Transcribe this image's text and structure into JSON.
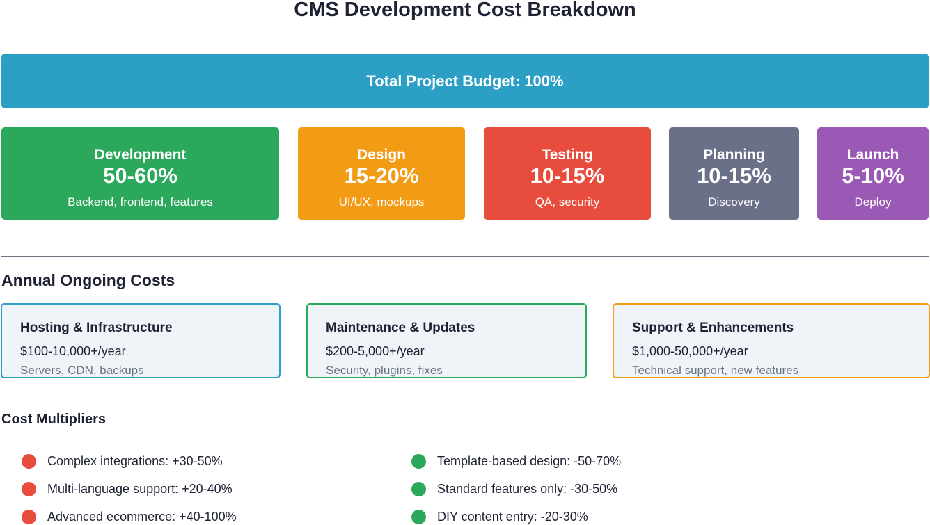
{
  "title": "CMS Development Cost Breakdown",
  "total": "Total Project Budget: 100%",
  "phases": [
    {
      "name": "Development",
      "value": "50-60%",
      "desc": "Backend, frontend, features",
      "color": "#2ba85c"
    },
    {
      "name": "Design",
      "value": "15-20%",
      "desc": "UI/UX, mockups",
      "color": "#f29c16"
    },
    {
      "name": "Testing",
      "value": "10-15%",
      "desc": "QA, security",
      "color": "#e84c3d"
    },
    {
      "name": "Planning",
      "value": "10-15%",
      "desc": "Discovery",
      "color": "#6b7089"
    },
    {
      "name": "Launch",
      "value": "5-10%",
      "desc": "Deploy",
      "color": "#9b59b6"
    }
  ],
  "ongoing": {
    "heading": "Annual Ongoing Costs",
    "items": [
      {
        "title": "Hosting & Infrastructure",
        "price": "$100-10,000+/year",
        "desc": "Servers, CDN, backups",
        "color": "#2b9fc4"
      },
      {
        "title": "Maintenance & Updates",
        "price": "$200-5,000+/year",
        "desc": "Security, plugins, fixes",
        "color": "#2ba85c"
      },
      {
        "title": "Support & Enhancements",
        "price": "$1,000-50,000+/year",
        "desc": "Technical support, new features",
        "color": "#f29c16"
      }
    ]
  },
  "multipliers": {
    "heading": "Cost Multipliers",
    "increase_color": "#e84c3d",
    "decrease_color": "#2ba85c",
    "increase": [
      "Complex integrations: +30-50%",
      "Multi-language support: +20-40%",
      "Advanced ecommerce: +40-100%"
    ],
    "decrease": [
      "Template-based design: -50-70%",
      "Standard features only: -30-50%",
      "DIY content entry: -20-30%"
    ]
  }
}
